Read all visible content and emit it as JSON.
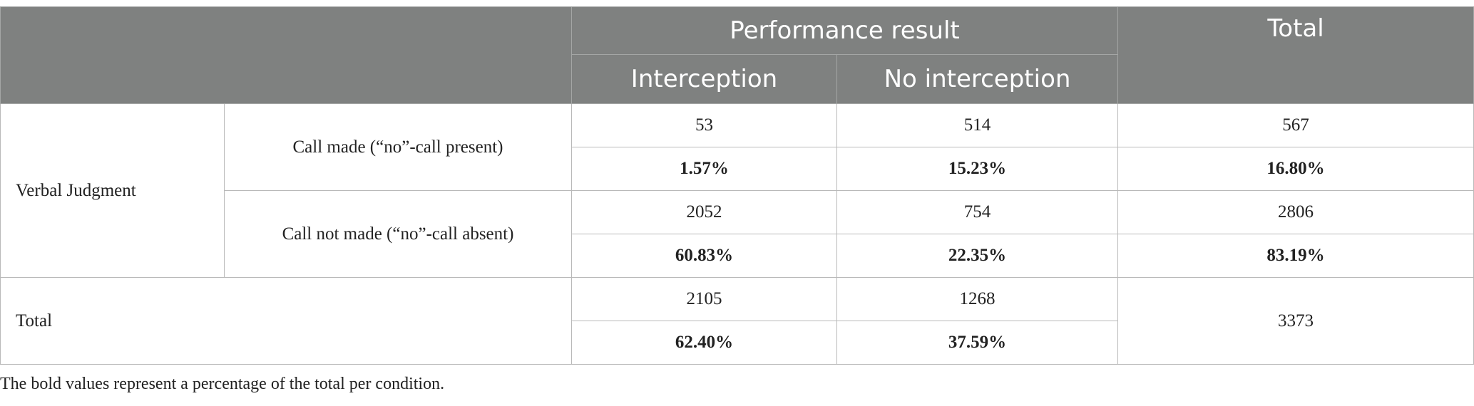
{
  "table": {
    "header": {
      "group": "Performance result",
      "total": "Total",
      "columns": [
        "Interception",
        "No interception"
      ]
    },
    "row_group": "Verbal Judgment",
    "conditions": [
      {
        "label": "Call made (“no”-call present)",
        "counts": [
          "53",
          "514",
          "567"
        ],
        "percents": [
          "1.57%",
          "15.23%",
          "16.80%"
        ]
      },
      {
        "label": "Call not made (“no”-call absent)",
        "counts": [
          "2052",
          "754",
          "2806"
        ],
        "percents": [
          "60.83%",
          "22.35%",
          "83.19%"
        ]
      }
    ],
    "total": {
      "label": "Total",
      "counts": [
        "2105",
        "1268"
      ],
      "percents": [
        "62.40%",
        "37.59%"
      ],
      "grand": "3373"
    }
  },
  "footnote": "The bold values represent a percentage of the total per condition."
}
